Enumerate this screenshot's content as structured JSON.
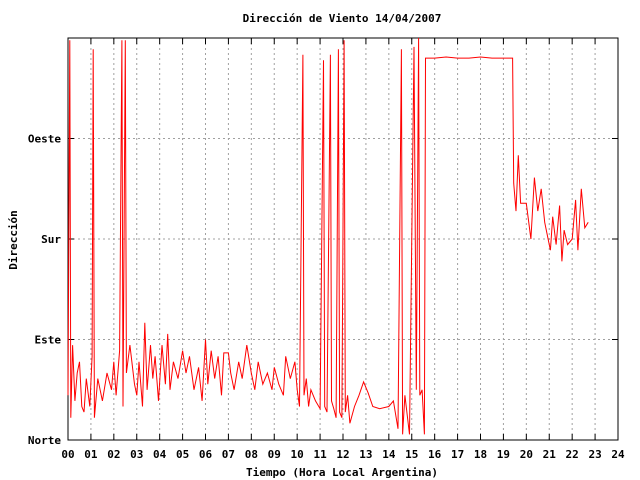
{
  "chart_data": {
    "type": "line",
    "title": "Dirección de Viento 14/04/2007",
    "xlabel": "Tiempo (Hora Local Argentina)",
    "ylabel": "Dirección",
    "xlim": [
      0,
      24
    ],
    "ylim": [
      0,
      360
    ],
    "x_ticks": [
      "00",
      "01",
      "02",
      "03",
      "04",
      "05",
      "06",
      "07",
      "08",
      "09",
      "10",
      "11",
      "12",
      "13",
      "14",
      "15",
      "16",
      "17",
      "18",
      "19",
      "20",
      "21",
      "22",
      "23",
      "24"
    ],
    "y_ticks": [
      {
        "value": 0,
        "label": "Norte"
      },
      {
        "value": 90,
        "label": "Este"
      },
      {
        "value": 180,
        "label": "Sur"
      },
      {
        "value": 270,
        "label": "Oeste"
      }
    ],
    "grid": true,
    "series_color": "#ff0000",
    "series": [
      {
        "values": [
          [
            0.0,
            40
          ],
          [
            0.08,
            358
          ],
          [
            0.12,
            20
          ],
          [
            0.2,
            85
          ],
          [
            0.3,
            35
          ],
          [
            0.4,
            60
          ],
          [
            0.5,
            70
          ],
          [
            0.6,
            30
          ],
          [
            0.7,
            25
          ],
          [
            0.8,
            55
          ],
          [
            0.95,
            30
          ],
          [
            1.05,
            75
          ],
          [
            1.1,
            350
          ],
          [
            1.15,
            20
          ],
          [
            1.3,
            55
          ],
          [
            1.5,
            35
          ],
          [
            1.7,
            60
          ],
          [
            1.9,
            45
          ],
          [
            2.0,
            70
          ],
          [
            2.1,
            40
          ],
          [
            2.25,
            80
          ],
          [
            2.35,
            358
          ],
          [
            2.4,
            30
          ],
          [
            2.5,
            358
          ],
          [
            2.55,
            60
          ],
          [
            2.7,
            85
          ],
          [
            2.9,
            50
          ],
          [
            3.0,
            40
          ],
          [
            3.1,
            70
          ],
          [
            3.25,
            30
          ],
          [
            3.35,
            105
          ],
          [
            3.45,
            45
          ],
          [
            3.6,
            85
          ],
          [
            3.7,
            55
          ],
          [
            3.8,
            75
          ],
          [
            3.95,
            35
          ],
          [
            4.1,
            85
          ],
          [
            4.25,
            50
          ],
          [
            4.35,
            95
          ],
          [
            4.45,
            45
          ],
          [
            4.6,
            70
          ],
          [
            4.8,
            55
          ],
          [
            5.0,
            80
          ],
          [
            5.15,
            60
          ],
          [
            5.3,
            75
          ],
          [
            5.5,
            45
          ],
          [
            5.7,
            65
          ],
          [
            5.85,
            35
          ],
          [
            6.0,
            90
          ],
          [
            6.1,
            50
          ],
          [
            6.25,
            80
          ],
          [
            6.4,
            55
          ],
          [
            6.55,
            75
          ],
          [
            6.7,
            40
          ],
          [
            6.8,
            78
          ],
          [
            7.0,
            78
          ],
          [
            7.1,
            60
          ],
          [
            7.25,
            45
          ],
          [
            7.45,
            70
          ],
          [
            7.6,
            55
          ],
          [
            7.8,
            85
          ],
          [
            8.0,
            60
          ],
          [
            8.15,
            45
          ],
          [
            8.3,
            70
          ],
          [
            8.5,
            50
          ],
          [
            8.7,
            60
          ],
          [
            8.9,
            45
          ],
          [
            9.0,
            65
          ],
          [
            9.2,
            50
          ],
          [
            9.4,
            40
          ],
          [
            9.5,
            75
          ],
          [
            9.7,
            55
          ],
          [
            9.9,
            70
          ],
          [
            10.0,
            45
          ],
          [
            10.1,
            30
          ],
          [
            10.25,
            345
          ],
          [
            10.3,
            40
          ],
          [
            10.4,
            55
          ],
          [
            10.5,
            30
          ],
          [
            10.6,
            45
          ],
          [
            10.8,
            35
          ],
          [
            11.0,
            28
          ],
          [
            11.15,
            340
          ],
          [
            11.2,
            30
          ],
          [
            11.3,
            25
          ],
          [
            11.45,
            345
          ],
          [
            11.5,
            35
          ],
          [
            11.6,
            28
          ],
          [
            11.7,
            20
          ],
          [
            11.8,
            350
          ],
          [
            11.85,
            25
          ],
          [
            11.95,
            20
          ],
          [
            12.05,
            358
          ],
          [
            12.1,
            25
          ],
          [
            12.2,
            40
          ],
          [
            12.3,
            15
          ],
          [
            12.5,
            30
          ],
          [
            12.7,
            40
          ],
          [
            12.9,
            52
          ],
          [
            13.1,
            42
          ],
          [
            13.3,
            30
          ],
          [
            13.6,
            28
          ],
          [
            14.0,
            30
          ],
          [
            14.2,
            35
          ],
          [
            14.4,
            10
          ],
          [
            14.55,
            350
          ],
          [
            14.6,
            5
          ],
          [
            14.7,
            40
          ],
          [
            14.9,
            5
          ],
          [
            15.1,
            352
          ],
          [
            15.2,
            45
          ],
          [
            15.3,
            360
          ],
          [
            15.35,
            40
          ],
          [
            15.45,
            45
          ],
          [
            15.55,
            5
          ],
          [
            15.6,
            342
          ],
          [
            16.0,
            342
          ],
          [
            16.5,
            343
          ],
          [
            17.0,
            342
          ],
          [
            17.5,
            342
          ],
          [
            18.0,
            343
          ],
          [
            18.5,
            342
          ],
          [
            19.0,
            342
          ],
          [
            19.4,
            342
          ],
          [
            19.45,
            230
          ],
          [
            19.55,
            205
          ],
          [
            19.65,
            255
          ],
          [
            19.75,
            212
          ],
          [
            20.0,
            212
          ],
          [
            20.2,
            180
          ],
          [
            20.35,
            235
          ],
          [
            20.5,
            205
          ],
          [
            20.65,
            225
          ],
          [
            20.8,
            195
          ],
          [
            20.95,
            180
          ],
          [
            21.05,
            170
          ],
          [
            21.15,
            200
          ],
          [
            21.3,
            175
          ],
          [
            21.45,
            210
          ],
          [
            21.55,
            160
          ],
          [
            21.65,
            188
          ],
          [
            21.8,
            175
          ],
          [
            22.0,
            180
          ],
          [
            22.15,
            215
          ],
          [
            22.25,
            170
          ],
          [
            22.4,
            225
          ],
          [
            22.55,
            190
          ],
          [
            22.7,
            195
          ]
        ]
      }
    ]
  }
}
